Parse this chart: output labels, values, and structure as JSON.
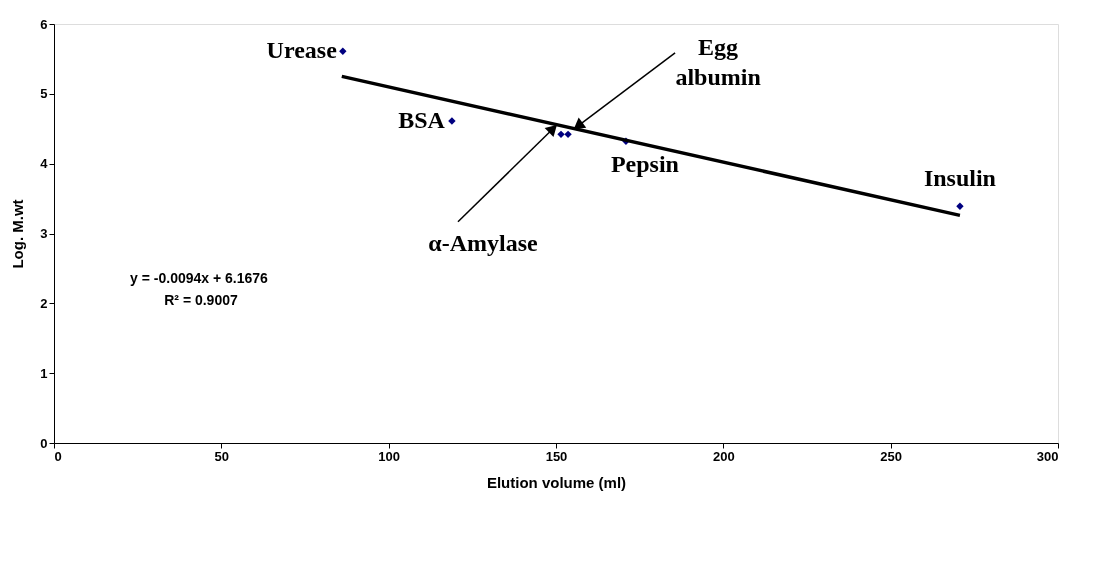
{
  "chart_data": {
    "type": "scatter",
    "xlabel": "Elution volume (ml)",
    "ylabel": "Log. M.wt",
    "xlim": [
      0,
      300
    ],
    "xticks": [
      0,
      50,
      100,
      150,
      200,
      250,
      300
    ],
    "ylim": [
      0,
      6
    ],
    "yticks": [
      0,
      1,
      2,
      3,
      4,
      5,
      6
    ],
    "grid": false,
    "series": [
      {
        "color": "#000080",
        "marker": "diamond",
        "x": [
          86.3,
          118.9,
          151.5,
          153.6,
          170.9,
          270.7
        ],
        "values": [
          5.61,
          4.61,
          4.42,
          4.42,
          4.32,
          3.39
        ]
      },
      {
        "type": "line",
        "color": "#000000",
        "x": [
          86,
          270.7
        ],
        "values": [
          5.25,
          3.26
        ]
      }
    ],
    "annotations": [
      {
        "text": "Urease",
        "x": 86.3,
        "y": 5.61
      },
      {
        "text": "BSA",
        "x": 118.9,
        "y": 4.61
      },
      {
        "text": "α-Amylase",
        "x": 149.1,
        "y": 4.5
      },
      {
        "text": "Egg albumin",
        "x": 156.6,
        "y": 4.54
      },
      {
        "text": "Pepsin",
        "x": 170.9,
        "y": 4.32
      },
      {
        "text": "Insulin",
        "x": 270.7,
        "y": 3.39
      },
      "y = -0.0094x + 6.1676",
      "R² = 0.9007"
    ]
  }
}
